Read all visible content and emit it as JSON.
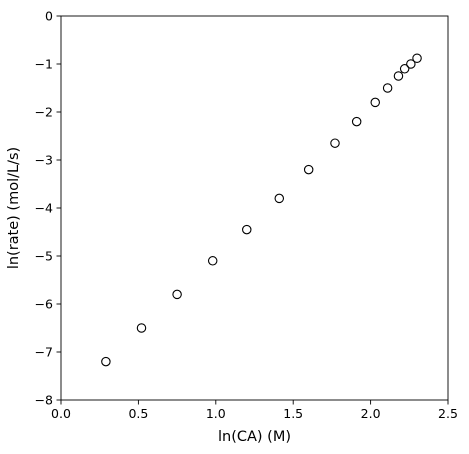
{
  "chart_data": {
    "type": "scatter",
    "title": "",
    "xlabel": "ln(CA) (M)",
    "ylabel": "ln(rate) (mol/L/s)",
    "xlim": [
      0.0,
      2.5
    ],
    "ylim": [
      -8,
      0
    ],
    "x_ticks": [
      0.0,
      0.5,
      1.0,
      1.5,
      2.0,
      2.5
    ],
    "x_tick_labels": [
      "0.0",
      "0.5",
      "1.0",
      "1.5",
      "2.0",
      "2.5"
    ],
    "y_ticks": [
      0,
      -1,
      -2,
      -3,
      -4,
      -5,
      -6,
      -7,
      -8
    ],
    "y_tick_labels": [
      "0",
      "−1",
      "−2",
      "−3",
      "−4",
      "−5",
      "−6",
      "−7",
      "−8"
    ],
    "grid": false,
    "marker": "hollow-circle",
    "marker_color": "#000000",
    "series": [
      {
        "x": [
          0.29,
          0.52,
          0.75,
          0.98,
          1.2,
          1.41,
          1.6,
          1.77,
          1.91,
          2.03,
          2.11,
          2.18,
          2.22,
          2.26,
          2.3
        ],
        "y": [
          -7.2,
          -6.5,
          -5.8,
          -5.1,
          -4.45,
          -3.8,
          -3.2,
          -2.65,
          -2.2,
          -1.8,
          -1.5,
          -1.25,
          -1.1,
          -1.0,
          -0.88
        ]
      }
    ]
  }
}
